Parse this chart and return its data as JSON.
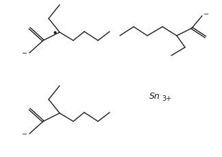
{
  "bg_color": "#ffffff",
  "line_color": "#1a1a1a",
  "line_width": 1.0,
  "text_color": "#1a1a1a",
  "fig_w": 3.24,
  "fig_h": 2.3,
  "dpi": 100
}
